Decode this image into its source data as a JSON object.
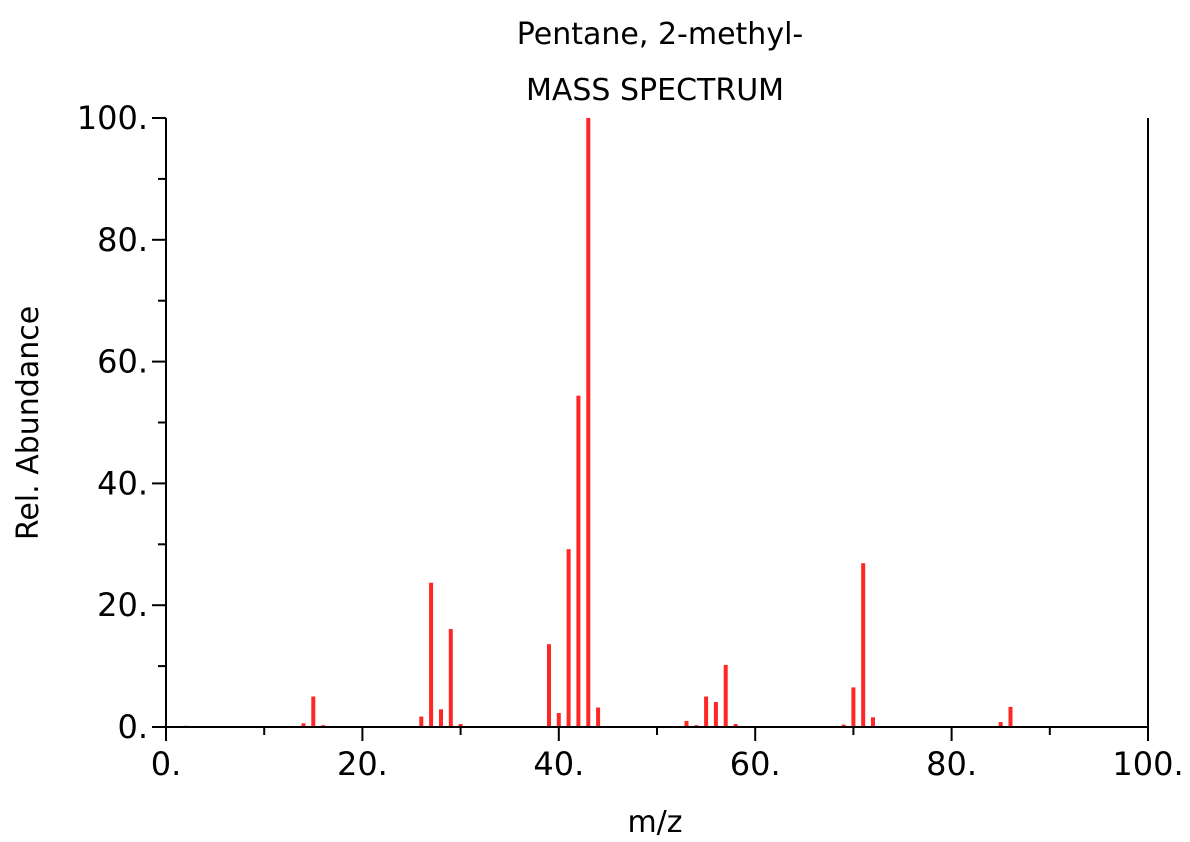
{
  "chart_data": {
    "type": "bar",
    "title": "Pentane, 2-methyl-",
    "subtitle": "MASS SPECTRUM",
    "xlabel": "m/z",
    "ylabel": "Rel. Abundance",
    "xlim": [
      0,
      100
    ],
    "ylim": [
      0,
      100
    ],
    "x_ticks": [
      "0.",
      "20.",
      "40.",
      "60.",
      "80.",
      "100."
    ],
    "y_ticks": [
      "0.",
      "20.",
      "40.",
      "60.",
      "80.",
      "100."
    ],
    "grid": false,
    "bar_color": "#ff0000",
    "peaks": [
      {
        "mz": 2,
        "abundance": 0.2
      },
      {
        "mz": 14,
        "abundance": 0.6
      },
      {
        "mz": 15,
        "abundance": 5.0
      },
      {
        "mz": 16,
        "abundance": 0.3
      },
      {
        "mz": 26,
        "abundance": 1.7
      },
      {
        "mz": 27,
        "abundance": 23.7
      },
      {
        "mz": 28,
        "abundance": 2.9
      },
      {
        "mz": 29,
        "abundance": 16.1
      },
      {
        "mz": 30,
        "abundance": 0.5
      },
      {
        "mz": 39,
        "abundance": 13.6
      },
      {
        "mz": 40,
        "abundance": 2.3
      },
      {
        "mz": 41,
        "abundance": 29.2
      },
      {
        "mz": 42,
        "abundance": 54.4
      },
      {
        "mz": 43,
        "abundance": 100.0
      },
      {
        "mz": 44,
        "abundance": 3.2
      },
      {
        "mz": 53,
        "abundance": 1.0
      },
      {
        "mz": 54,
        "abundance": 0.3
      },
      {
        "mz": 55,
        "abundance": 5.0
      },
      {
        "mz": 56,
        "abundance": 4.1
      },
      {
        "mz": 57,
        "abundance": 10.2
      },
      {
        "mz": 58,
        "abundance": 0.5
      },
      {
        "mz": 69,
        "abundance": 0.4
      },
      {
        "mz": 70,
        "abundance": 6.5
      },
      {
        "mz": 71,
        "abundance": 26.9
      },
      {
        "mz": 72,
        "abundance": 1.6
      },
      {
        "mz": 85,
        "abundance": 0.8
      },
      {
        "mz": 86,
        "abundance": 3.3
      }
    ]
  }
}
